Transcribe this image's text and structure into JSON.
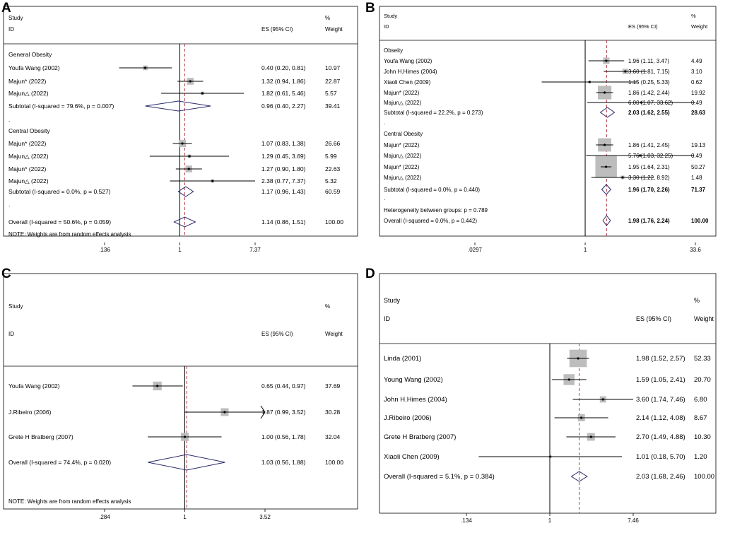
{
  "chart_data": [
    {
      "type": "forest",
      "panel": "A",
      "header": {
        "study": "Study",
        "id": "ID",
        "es": "ES (95% CI)",
        "pct": "%",
        "weight": "Weight"
      },
      "xaxis": {
        "min": 0.136,
        "max": 7.37,
        "ticks": [
          ".136",
          "1",
          "7.37"
        ],
        "tick_values": [
          0.136,
          1,
          7.37
        ]
      },
      "overall_line": 1.14,
      "rows": [
        {
          "kind": "group",
          "label": "General Obesity"
        },
        {
          "kind": "study",
          "label": "Youfa Wang (2002)",
          "es": 0.4,
          "lo": 0.2,
          "hi": 0.81,
          "ci": "0.40 (0.20, 0.81)",
          "weight": "10.97",
          "w": 10.97
        },
        {
          "kind": "study",
          "label": "Majun* (2022)",
          "es": 1.32,
          "lo": 0.94,
          "hi": 1.86,
          "ci": "1.32 (0.94, 1.86)",
          "weight": "22.87",
          "w": 22.87
        },
        {
          "kind": "study",
          "label": "Majun△ (2022)",
          "es": 1.82,
          "lo": 0.61,
          "hi": 5.46,
          "ci": "1.82 (0.61, 5.46)",
          "weight": "5.57",
          "w": 5.57
        },
        {
          "kind": "subtotal",
          "label": "Subtotal  (I-squared = 79.6%, p = 0.007)",
          "es": 0.96,
          "lo": 0.4,
          "hi": 2.27,
          "ci": "0.96 (0.40, 2.27)",
          "weight": "39.41"
        },
        {
          "kind": "dot",
          "label": "."
        },
        {
          "kind": "group",
          "label": "Central Obesity"
        },
        {
          "kind": "study",
          "label": "Majun* (2022)",
          "es": 1.07,
          "lo": 0.83,
          "hi": 1.38,
          "ci": "1.07 (0.83, 1.38)",
          "weight": "26.66",
          "w": 26.66
        },
        {
          "kind": "study",
          "label": "Majun△ (2022)",
          "es": 1.29,
          "lo": 0.45,
          "hi": 3.69,
          "ci": "1.29 (0.45, 3.69)",
          "weight": "5.99",
          "w": 5.99
        },
        {
          "kind": "study",
          "label": "Majun* (2022)",
          "es": 1.27,
          "lo": 0.9,
          "hi": 1.8,
          "ci": "1.27 (0.90, 1.80)",
          "weight": "22.63",
          "w": 22.63
        },
        {
          "kind": "study",
          "label": "Majun△ (2022)",
          "es": 2.38,
          "lo": 0.77,
          "hi": 7.37,
          "ci": "2.38 (0.77, 7.37)",
          "weight": "5.32",
          "w": 5.32
        },
        {
          "kind": "subtotal",
          "label": "Subtotal  (I-squared = 0.0%, p = 0.527)",
          "es": 1.17,
          "lo": 0.96,
          "hi": 1.43,
          "ci": "1.17 (0.96, 1.43)",
          "weight": "60.59"
        },
        {
          "kind": "dot",
          "label": "."
        },
        {
          "kind": "overall",
          "label": "Overall  (I-squared = 50.6%, p = 0.059)",
          "es": 1.14,
          "lo": 0.86,
          "hi": 1.51,
          "ci": "1.14 (0.86, 1.51)",
          "weight": "100.00"
        },
        {
          "kind": "note",
          "label": "NOTE: Weights are from random effects analysis"
        }
      ]
    },
    {
      "type": "forest",
      "panel": "B",
      "header": {
        "study": "Study",
        "id": "ID",
        "es": "ES (95% CI)",
        "pct": "%",
        "weight": "Weight"
      },
      "xaxis": {
        "min": 0.0297,
        "max": 33.6,
        "ticks": [
          ".0297",
          "1",
          "33.6"
        ],
        "tick_values": [
          0.0297,
          1,
          33.6
        ]
      },
      "overall_line": 1.98,
      "rows": [
        {
          "kind": "group",
          "label": "Obseity"
        },
        {
          "kind": "study",
          "label": "Youfa Wang (2002)",
          "es": 1.96,
          "lo": 1.11,
          "hi": 3.47,
          "ci": "1.96 (1.11, 3.47)",
          "weight": "4.49",
          "w": 4.49
        },
        {
          "kind": "study",
          "label": "John H.Himes (2004)",
          "es": 3.6,
          "lo": 1.81,
          "hi": 7.15,
          "ci": "3.60 (1.81, 7.15)",
          "weight": "3.10",
          "w": 3.1
        },
        {
          "kind": "study",
          "label": "Xiaoli Chen (2009)",
          "es": 1.15,
          "lo": 0.25,
          "hi": 5.33,
          "ci": "1.15 (0.25, 5.33)",
          "weight": "0.62",
          "w": 0.62
        },
        {
          "kind": "study",
          "label": "Majun* (2022)",
          "es": 1.86,
          "lo": 1.42,
          "hi": 2.44,
          "ci": "1.86 (1.42, 2.44)",
          "weight": "19.92",
          "w": 19.92
        },
        {
          "kind": "study",
          "label": "Majun△ (2022)",
          "es": 6.0,
          "lo": 1.07,
          "hi": 33.62,
          "ci": "6.00 (1.07, 33.62)",
          "weight": "0.49",
          "w": 0.49
        },
        {
          "kind": "subtotal",
          "label": "Subtotal  (I-squared = 22.2%, p = 0.273)",
          "es": 2.03,
          "lo": 1.62,
          "hi": 2.55,
          "ci": "2.03 (1.62, 2.55)",
          "weight": "28.63"
        },
        {
          "kind": "dot",
          "label": "."
        },
        {
          "kind": "group",
          "label": "Central Obesity"
        },
        {
          "kind": "study",
          "label": "Majun* (2022)",
          "es": 1.86,
          "lo": 1.41,
          "hi": 2.45,
          "ci": "1.86 (1.41, 2.45)",
          "weight": "19.13",
          "w": 19.13
        },
        {
          "kind": "study",
          "label": "Majun△ (2022)",
          "es": 5.76,
          "lo": 1.03,
          "hi": 32.25,
          "ci": "5.76 (1.03, 32.25)",
          "weight": "0.49",
          "w": 0.49
        },
        {
          "kind": "study",
          "label": "Majun* (2022)",
          "es": 1.95,
          "lo": 1.64,
          "hi": 2.31,
          "ci": "1.95 (1.64, 2.31)",
          "weight": "50.27",
          "w": 50.27
        },
        {
          "kind": "study",
          "label": "Majun△ (2022)",
          "es": 3.3,
          "lo": 1.22,
          "hi": 8.92,
          "ci": "3.30 (1.22, 8.92)",
          "weight": "1.48",
          "w": 1.48
        },
        {
          "kind": "subtotal",
          "label": "Subtotal  (I-squared = 0.0%, p = 0.440)",
          "es": 1.96,
          "lo": 1.7,
          "hi": 2.26,
          "ci": "1.96 (1.70, 2.26)",
          "weight": "71.37"
        },
        {
          "kind": "dot",
          "label": "."
        },
        {
          "kind": "het",
          "label": "Heterogeneity between groups: p = 0.789"
        },
        {
          "kind": "overall",
          "label": "Overall  (I-squared = 0.0%, p = 0.442)",
          "es": 1.98,
          "lo": 1.76,
          "hi": 2.24,
          "ci": "1.98 (1.76, 2.24)",
          "weight": "100.00"
        }
      ]
    },
    {
      "type": "forest",
      "panel": "C",
      "header": {
        "study": "Study",
        "id": "ID",
        "es": "ES (95% CI)",
        "pct": "%",
        "weight": "Weight"
      },
      "xaxis": {
        "min": 0.284,
        "max": 3.52,
        "ticks": [
          ".284",
          "1",
          "3.52"
        ],
        "tick_values": [
          0.284,
          1,
          3.52
        ]
      },
      "overall_line": 1.03,
      "rows": [
        {
          "kind": "study",
          "label": "Youfa Wang (2002)",
          "es": 0.65,
          "lo": 0.44,
          "hi": 0.97,
          "ci": "0.65 (0.44, 0.97)",
          "weight": "37.69",
          "w": 37.69
        },
        {
          "kind": "study",
          "label": "J.Ribeiro  (2006)",
          "es": 1.87,
          "lo": 0.99,
          "hi": 3.52,
          "ci": "1.87 (0.99, 3.52)",
          "weight": "30.28",
          "w": 30.28,
          "arrow": true
        },
        {
          "kind": "study",
          "label": "Grete H Bratberg (2007)",
          "es": 1.0,
          "lo": 0.56,
          "hi": 1.78,
          "ci": "1.00 (0.56, 1.78)",
          "weight": "32.04",
          "w": 32.04
        },
        {
          "kind": "overall",
          "label": "Overall  (I-squared = 74.4%, p = 0.020)",
          "es": 1.03,
          "lo": 0.56,
          "hi": 1.88,
          "ci": "1.03 (0.56, 1.88)",
          "weight": "100.00"
        },
        {
          "kind": "note",
          "label": "NOTE: Weights are from random effects analysis"
        }
      ]
    },
    {
      "type": "forest",
      "panel": "D",
      "header": {
        "study": "Study",
        "id": "ID",
        "es": "ES (95% CI)",
        "pct": "%",
        "weight": "Weight"
      },
      "xaxis": {
        "min": 0.134,
        "max": 7.46,
        "ticks": [
          ".134",
          "1",
          "7.46"
        ],
        "tick_values": [
          0.134,
          1,
          7.46
        ]
      },
      "overall_line": 2.03,
      "rows": [
        {
          "kind": "study",
          "label": "Linda  (2001)",
          "es": 1.98,
          "lo": 1.52,
          "hi": 2.57,
          "ci": "1.98 (1.52, 2.57)",
          "weight": "52.33",
          "w": 52.33
        },
        {
          "kind": "study",
          "label": "Young Wang (2002)",
          "es": 1.59,
          "lo": 1.05,
          "hi": 2.41,
          "ci": "1.59 (1.05, 2.41)",
          "weight": "20.70",
          "w": 20.7
        },
        {
          "kind": "study",
          "label": "John H.Himes (2004)",
          "es": 3.6,
          "lo": 1.74,
          "hi": 7.46,
          "ci": "3.60 (1.74, 7.46)",
          "weight": "6.80",
          "w": 6.8
        },
        {
          "kind": "study",
          "label": "J.Ribeiro  (2006)",
          "es": 2.14,
          "lo": 1.12,
          "hi": 4.08,
          "ci": "2.14 (1.12, 4.08)",
          "weight": "8.67",
          "w": 8.67
        },
        {
          "kind": "study",
          "label": "Grete H Bratberg (2007)",
          "es": 2.7,
          "lo": 1.49,
          "hi": 4.88,
          "ci": "2.70 (1.49, 4.88)",
          "weight": "10.30",
          "w": 10.3
        },
        {
          "kind": "study",
          "label": "Xiaoli Chen (2009)",
          "es": 1.01,
          "lo": 0.18,
          "hi": 5.7,
          "ci": "1.01 (0.18, 5.70)",
          "weight": "1.20",
          "w": 1.2
        },
        {
          "kind": "overall",
          "label": "Overall  (I-squared = 5.1%, p = 0.384)",
          "es": 2.03,
          "lo": 1.68,
          "hi": 2.46,
          "ci": "2.03 (1.68, 2.46)",
          "weight": "100.00"
        }
      ]
    }
  ]
}
